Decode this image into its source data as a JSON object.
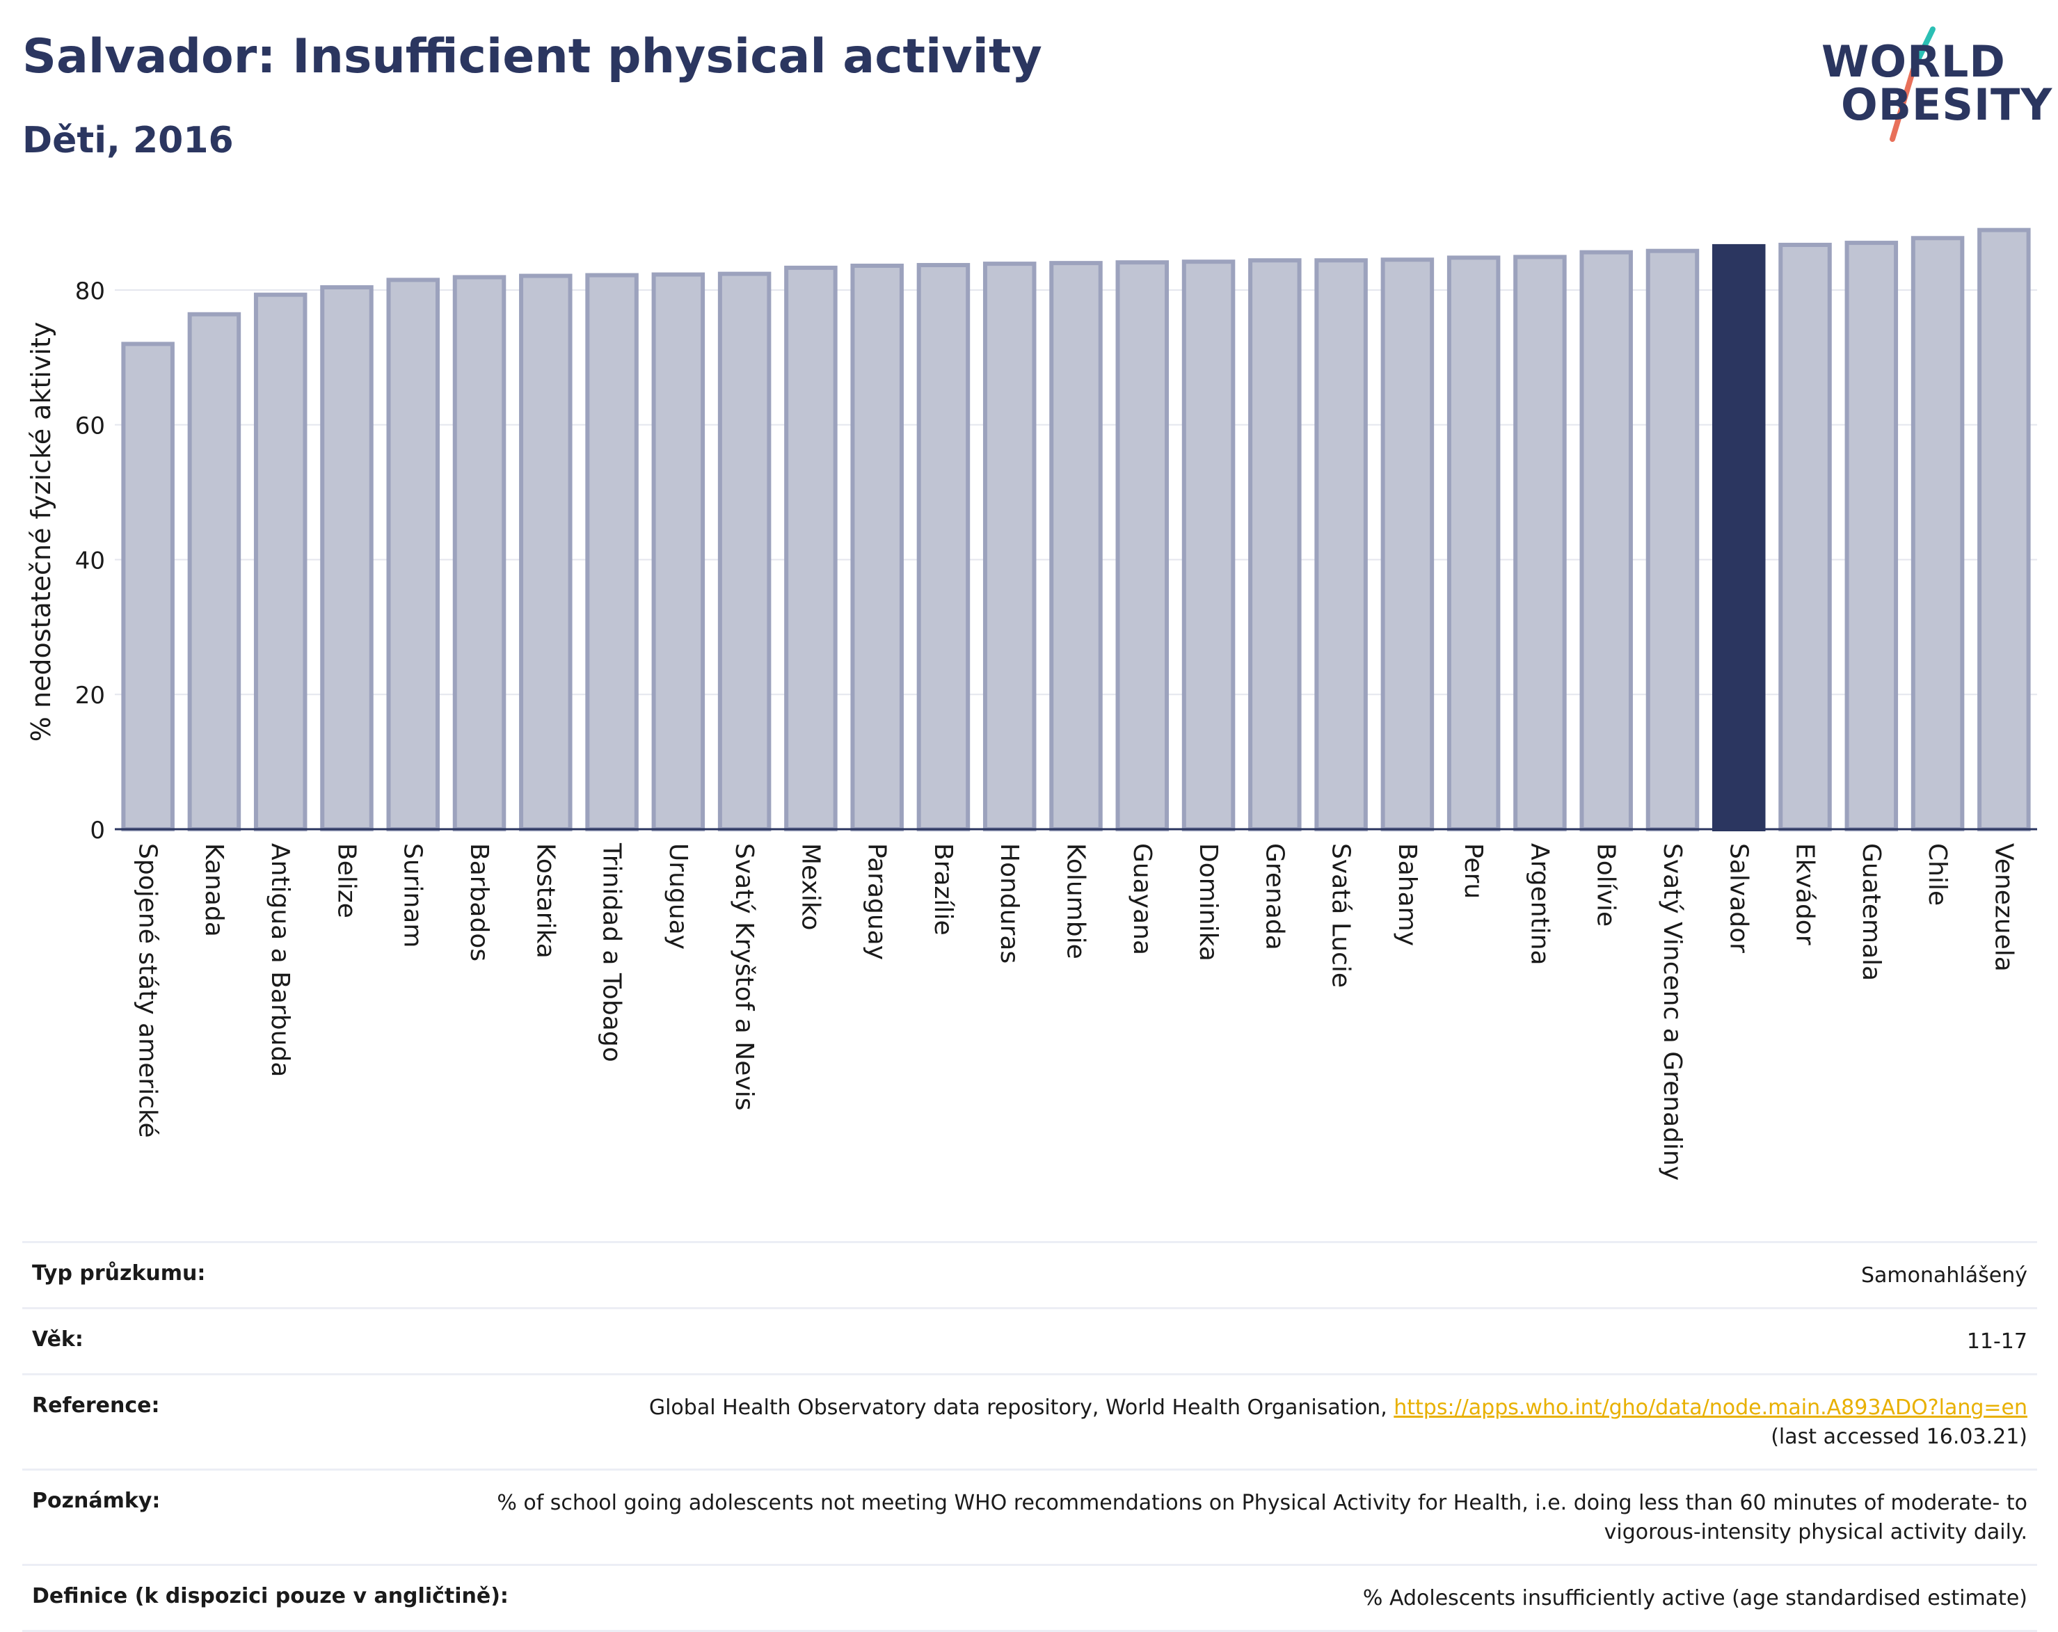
{
  "header": {
    "title": "Salvador: Insufficient physical activity",
    "subtitle": "Děti, 2016"
  },
  "logo": {
    "line1": "WORLD",
    "line2": "OBESITY",
    "colors": {
      "text": "#2b3660",
      "slash_top": "#2bbfb4",
      "slash_bottom": "#e8705a"
    }
  },
  "colors": {
    "bar": "#c0c4d3",
    "bar_stroke": "#9ca2bd",
    "highlight": "#2b3660",
    "grid": "#e4e6ee"
  },
  "chart_data": {
    "type": "bar",
    "ylabel": "% nedostatečné fyzické aktivity",
    "ylim": [
      0,
      90
    ],
    "yticks": [
      0,
      20,
      40,
      60,
      80
    ],
    "grid": true,
    "highlight": "Salvador",
    "categories": [
      "Spojené státy americké",
      "Kanada",
      "Antigua a Barbuda",
      "Belize",
      "Surinam",
      "Barbados",
      "Kostarika",
      "Trinidad a Tobago",
      "Uruguay",
      "Svatý Kryštof a Nevis",
      "Mexiko",
      "Paraguay",
      "Brazílie",
      "Honduras",
      "Kolumbie",
      "Guayana",
      "Dominika",
      "Grenada",
      "Svatá Lucie",
      "Bahamy",
      "Peru",
      "Argentina",
      "Bolívie",
      "Svatý Vincenc a Grenadiny",
      "Salvador",
      "Ekvádor",
      "Guatemala",
      "Chile",
      "Venezuela"
    ],
    "values": [
      72,
      76.4,
      79.3,
      80.4,
      81.5,
      81.9,
      82.1,
      82.2,
      82.3,
      82.4,
      83.3,
      83.6,
      83.7,
      83.9,
      84.0,
      84.1,
      84.2,
      84.4,
      84.4,
      84.5,
      84.8,
      84.9,
      85.6,
      85.8,
      86.5,
      86.7,
      87.0,
      87.7,
      88.9
    ]
  },
  "info": {
    "rows": [
      {
        "label": "Typ průzkumu:",
        "value": "Samonahlášený"
      },
      {
        "label": "Věk:",
        "value": "11-17"
      },
      {
        "label": "Reference:",
        "value_prefix": "Global Health Observatory data repository, World Health Organisation, ",
        "link": "https://apps.who.int/gho/data/node.main.A893ADO?lang=en",
        "value_suffix": "(last accessed 16.03.21)"
      },
      {
        "label": "Poznámky:",
        "value": "% of school going adolescents not meeting WHO recommendations on Physical Activity for Health, i.e. doing less than 60 minutes of moderate- to vigorous-intensity physical activity daily."
      },
      {
        "label": "Definice (k dispozici pouze v angličtině):",
        "value": "% Adolescents insufficiently active (age standardised estimate)"
      }
    ]
  }
}
